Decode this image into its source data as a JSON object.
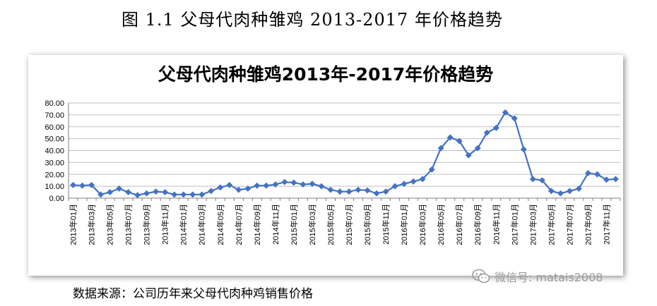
{
  "figure_caption": "图 1.1 父母代肉种雏鸡 2013-2017 年价格趋势",
  "source_note": "数据来源：公司历年来父母代肉种鸡销售价格",
  "watermark": {
    "text": "微信号: matais2008",
    "icon": "wechat-icon",
    "color": "#9a9a9a"
  },
  "chart_data": {
    "type": "line",
    "title": "父母代肉种雏鸡2013年-2017年价格趋势",
    "xlabel": "",
    "ylabel": "",
    "ylim": [
      0,
      80
    ],
    "yticks": [
      "0.00",
      "10.00",
      "20.00",
      "30.00",
      "40.00",
      "50.00",
      "60.00",
      "70.00",
      "80.00"
    ],
    "grid": true,
    "legend": "none",
    "color": "#4472c4",
    "marker": "diamond",
    "x_tick_labels": [
      "2013年01月",
      "2013年03月",
      "2013年05月",
      "2013年07月",
      "2013年09月",
      "2013年11月",
      "2014年01月",
      "2014年03月",
      "2014年05月",
      "2014年07月",
      "2014年09月",
      "2014年11月",
      "2015年01月",
      "2015年03月",
      "2015年05月",
      "2015年07月",
      "2015年09月",
      "2015年11月",
      "2016年01月",
      "2016年03月",
      "2016年05月",
      "2016年07月",
      "2016年09月",
      "2016年11月",
      "2017年01月",
      "2017年03月",
      "2017年05月",
      "2017年07月",
      "2017年09月",
      "2017年11月"
    ],
    "x": [
      "2013-01",
      "2013-02",
      "2013-03",
      "2013-04",
      "2013-05",
      "2013-06",
      "2013-07",
      "2013-08",
      "2013-09",
      "2013-10",
      "2013-11",
      "2013-12",
      "2014-01",
      "2014-02",
      "2014-03",
      "2014-04",
      "2014-05",
      "2014-06",
      "2014-07",
      "2014-08",
      "2014-09",
      "2014-10",
      "2014-11",
      "2014-12",
      "2015-01",
      "2015-02",
      "2015-03",
      "2015-04",
      "2015-05",
      "2015-06",
      "2015-07",
      "2015-08",
      "2015-09",
      "2015-10",
      "2015-11",
      "2015-12",
      "2016-01",
      "2016-02",
      "2016-03",
      "2016-04",
      "2016-05",
      "2016-06",
      "2016-07",
      "2016-08",
      "2016-09",
      "2016-10",
      "2016-11",
      "2016-12",
      "2017-01",
      "2017-02",
      "2017-03",
      "2017-04",
      "2017-05",
      "2017-06",
      "2017-07",
      "2017-08",
      "2017-09",
      "2017-10",
      "2017-11",
      "2017-12"
    ],
    "values": [
      11,
      10.5,
      11,
      3,
      5,
      8,
      5,
      2.5,
      4,
      5.5,
      5,
      3,
      3,
      3,
      3,
      6,
      9,
      11,
      7,
      8,
      10.5,
      10.5,
      11.5,
      13.5,
      13,
      11.5,
      12,
      10,
      7,
      5.5,
      5.5,
      7,
      6.5,
      4,
      5.5,
      10,
      12,
      14,
      16,
      24,
      42,
      51,
      48,
      36,
      42,
      55,
      59,
      72,
      67,
      41,
      16,
      15,
      6,
      4,
      6,
      8,
      21,
      20,
      15.5,
      16
    ]
  }
}
